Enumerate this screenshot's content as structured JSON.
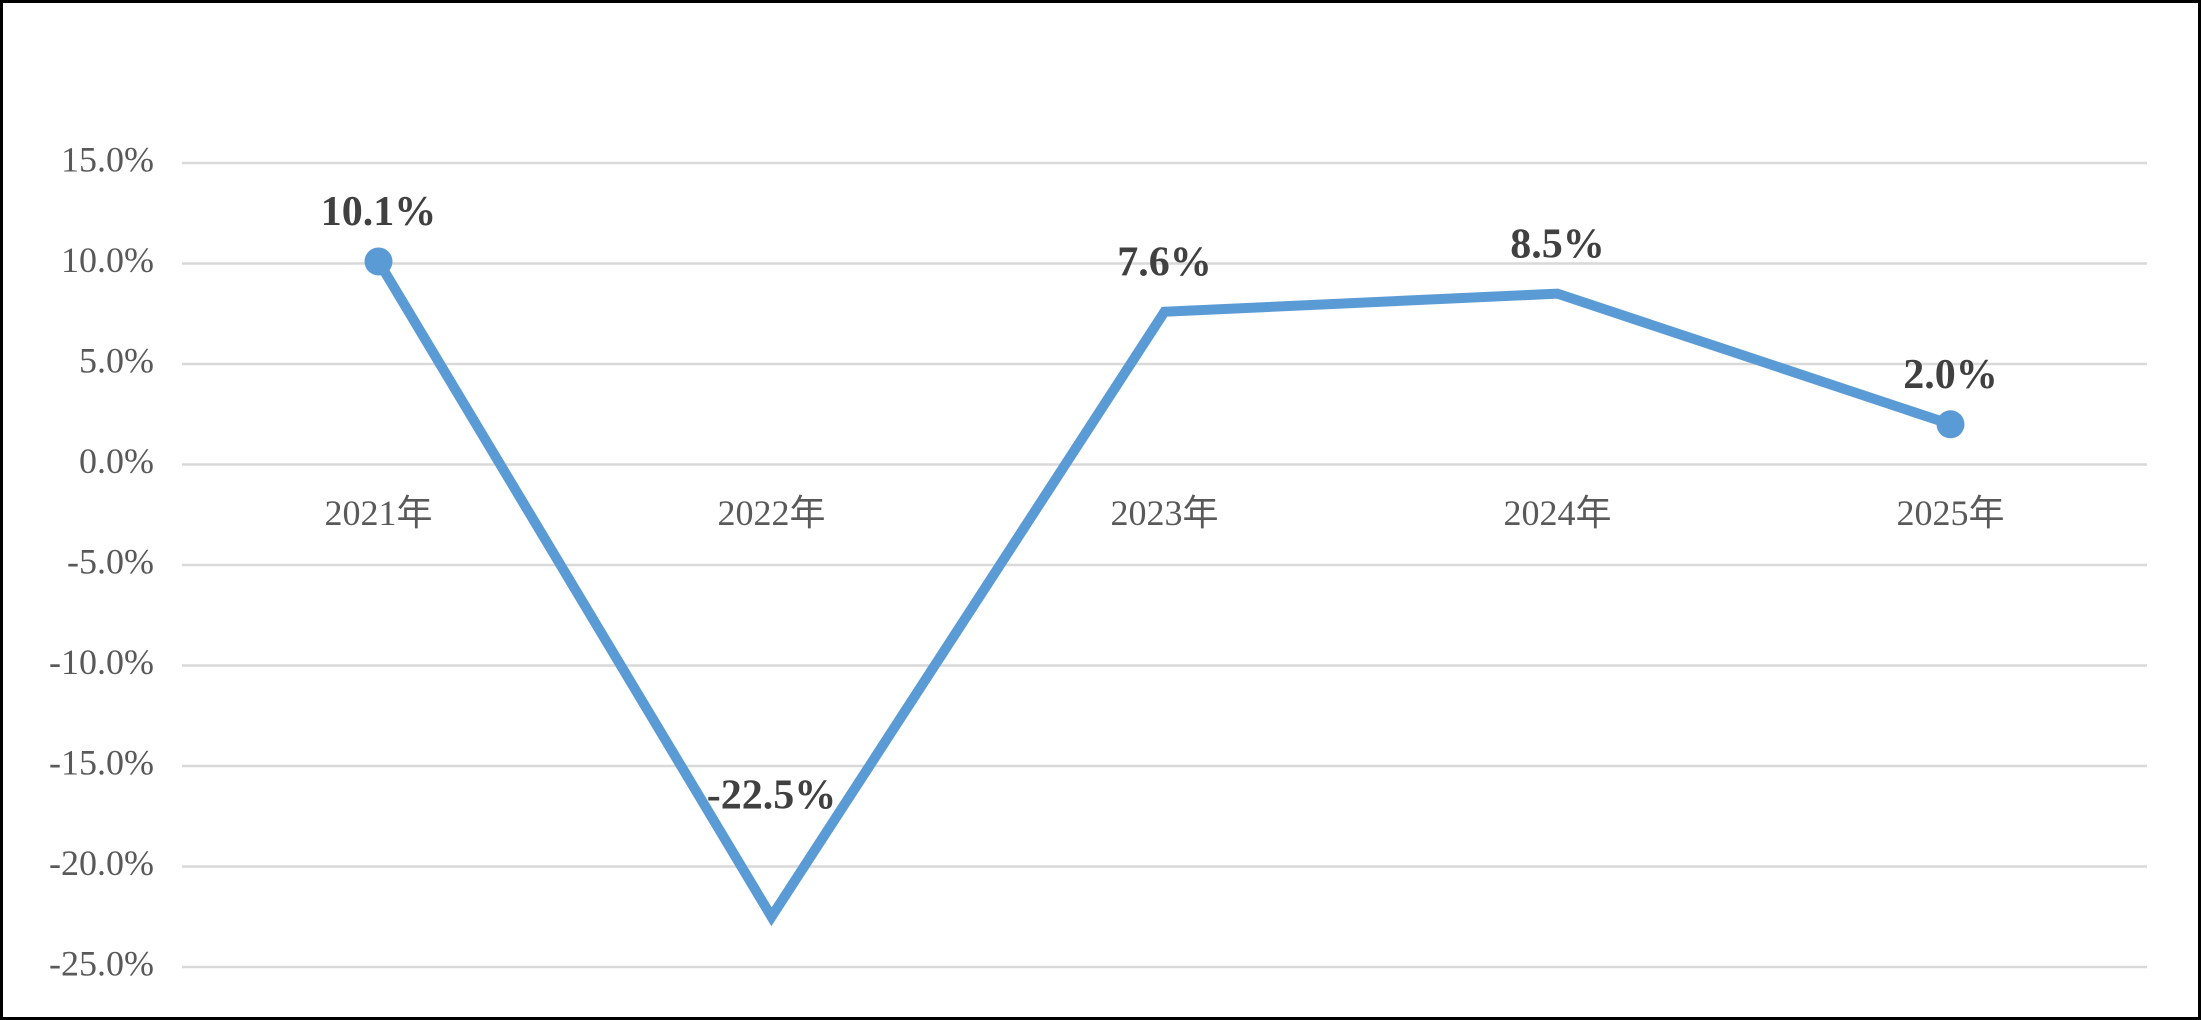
{
  "chart_data": {
    "type": "line",
    "categories": [
      "2021年",
      "2022年",
      "2023年",
      "2024年",
      "2025年"
    ],
    "values": [
      10.1,
      -22.5,
      7.6,
      8.5,
      2.0
    ],
    "value_labels": [
      "10.1%",
      "-22.5%",
      "7.6%",
      "8.5%",
      "2.0%"
    ],
    "color": "#5b9bd5",
    "ylim": [
      -25,
      15
    ],
    "yticks": [
      {
        "value": 15,
        "label": "15.0%"
      },
      {
        "value": 10,
        "label": "10.0%"
      },
      {
        "value": 5,
        "label": "5.0%"
      },
      {
        "value": 0,
        "label": "0.0%"
      },
      {
        "value": -5,
        "label": "-5.0%"
      },
      {
        "value": -10,
        "label": "-10.0%"
      },
      {
        "value": -15,
        "label": "-15.0%"
      },
      {
        "value": -20,
        "label": "-20.0%"
      },
      {
        "value": -25,
        "label": "-25.0%"
      }
    ],
    "grid": true
  }
}
